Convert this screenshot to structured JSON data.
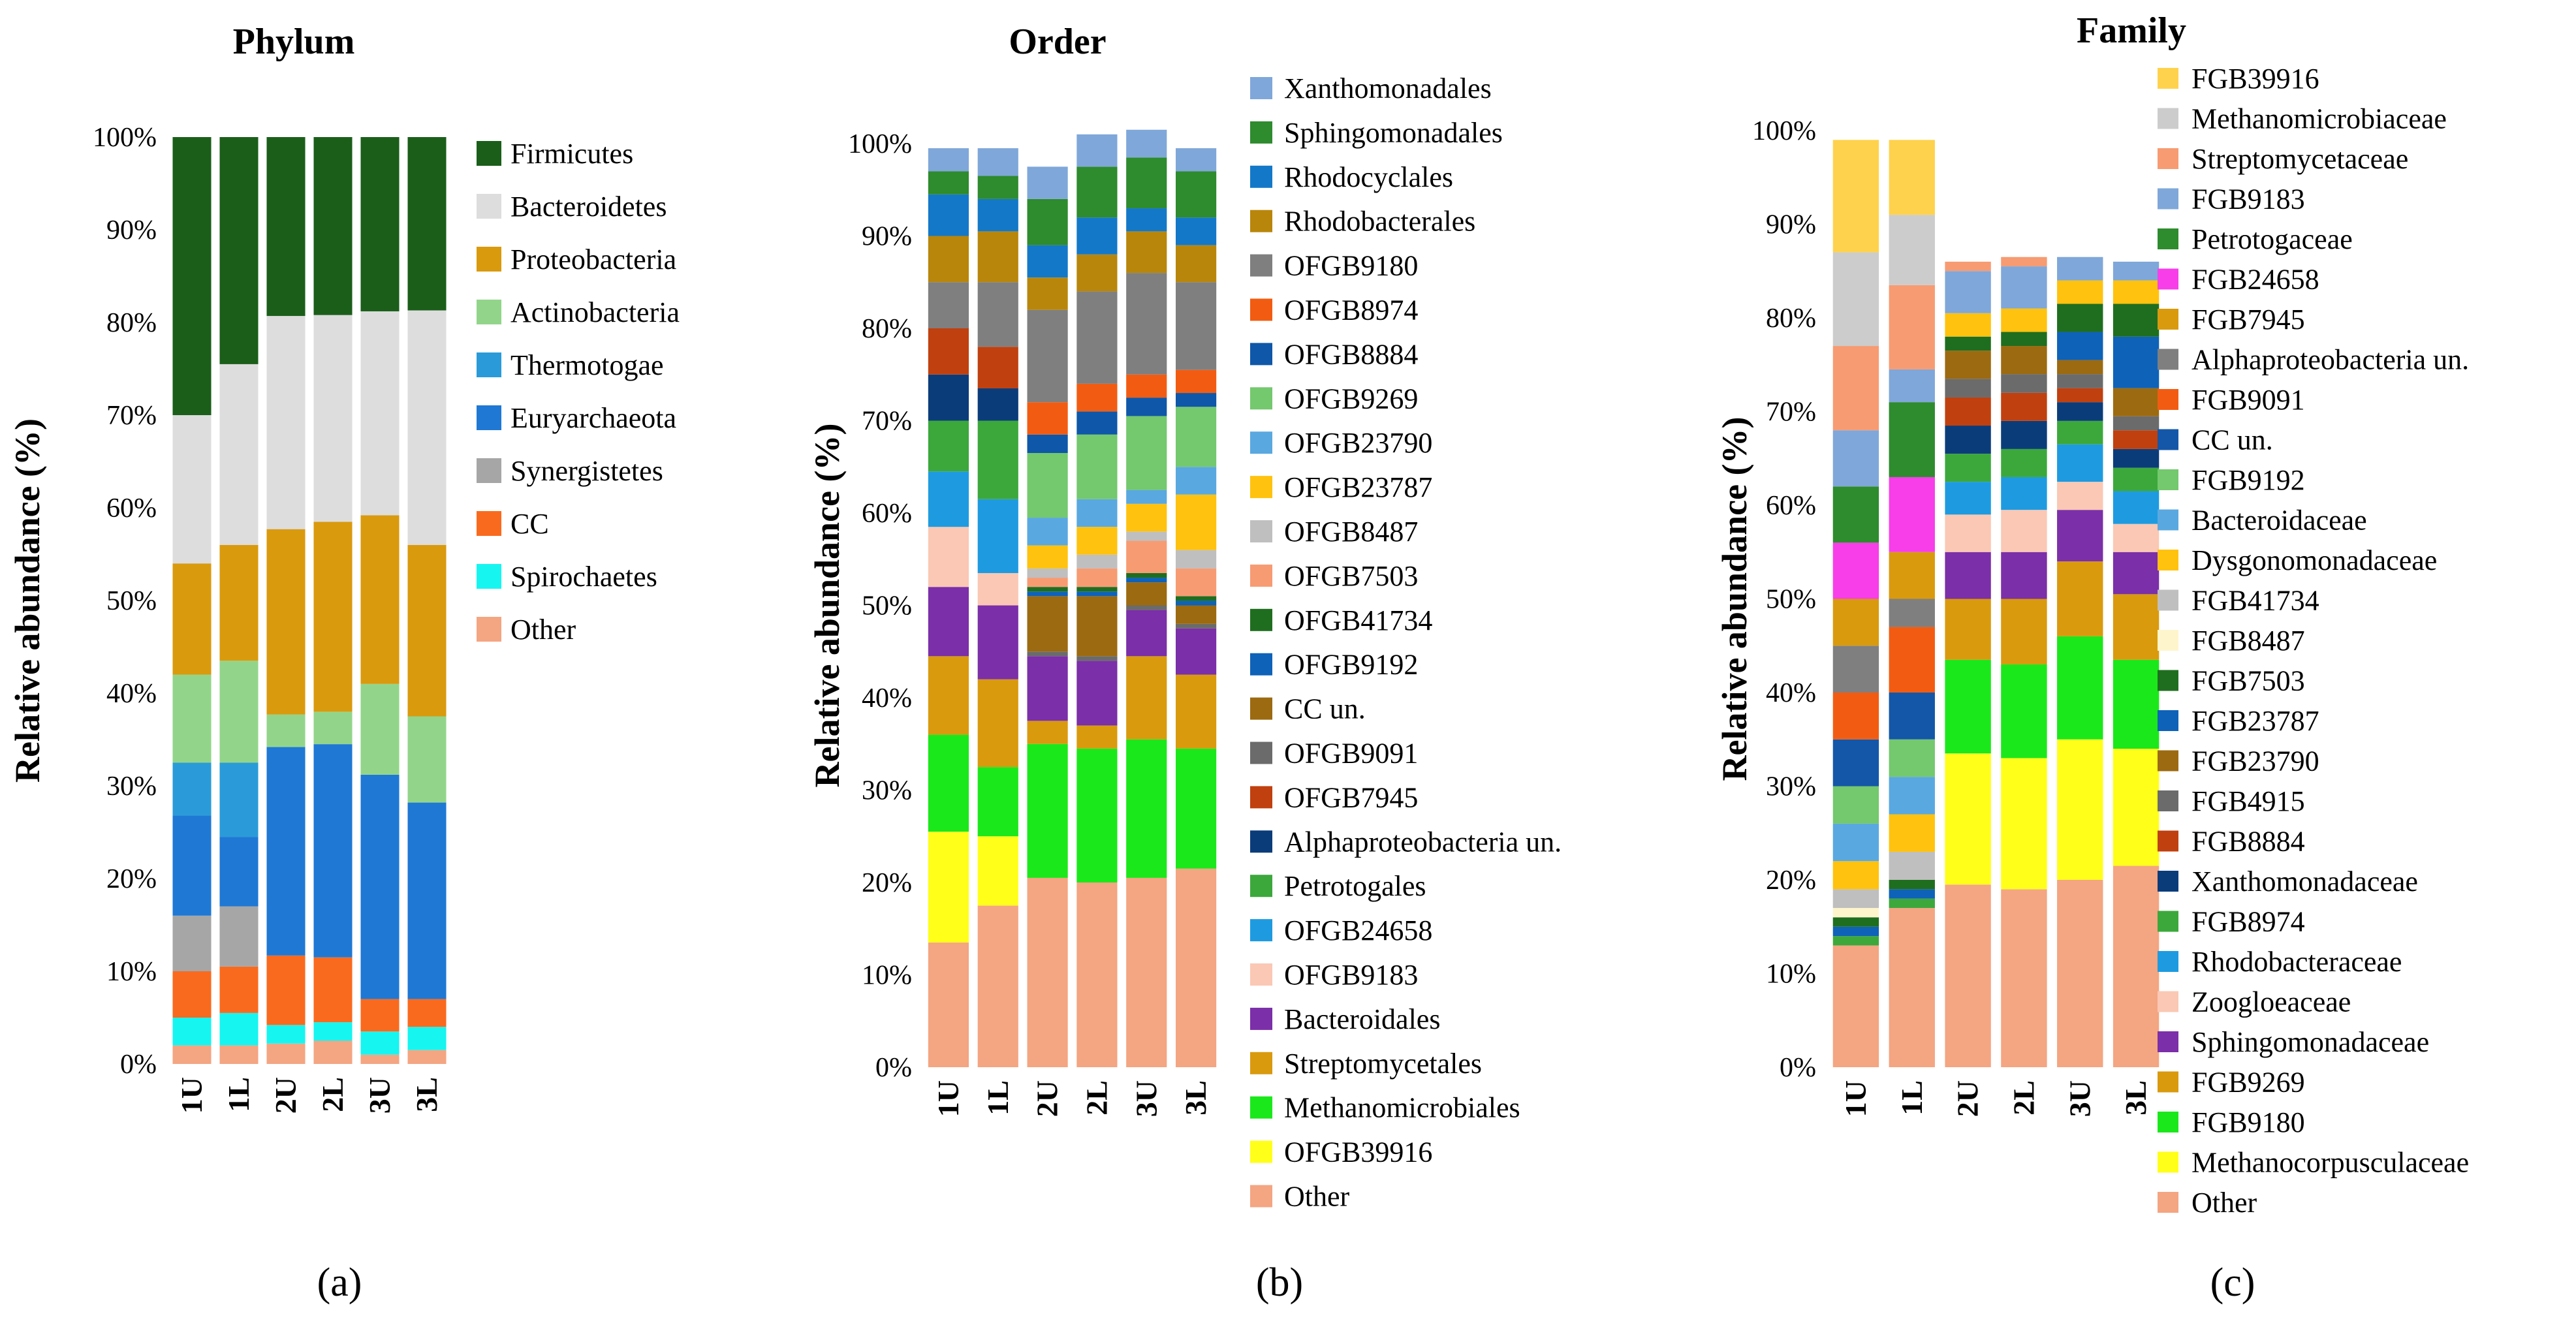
{
  "chart_data": [
    {
      "type": "bar",
      "stacked": true,
      "title": "Phylum",
      "caption": "(a)",
      "ylabel": "Relative abundance (%)",
      "ylim": [
        0,
        100
      ],
      "yticks": [
        "0%",
        "10%",
        "20%",
        "30%",
        "40%",
        "50%",
        "60%",
        "70%",
        "80%",
        "90%",
        "100%"
      ],
      "categories": [
        "1U",
        "1L",
        "2U",
        "2L",
        "3U",
        "3L"
      ],
      "series": [
        {
          "name": "Other",
          "color": "#F4A582",
          "values": [
            2,
            2,
            2.2,
            2.5,
            1,
            1.5
          ]
        },
        {
          "name": "Spirochaetes",
          "color": "#17F5F0",
          "values": [
            3,
            3.5,
            2,
            2,
            2.5,
            2.5
          ]
        },
        {
          "name": "CC",
          "color": "#FA6A1E",
          "values": [
            5,
            5,
            7.5,
            7,
            3.5,
            3
          ]
        },
        {
          "name": "Synergistetes",
          "color": "#A6A6A6",
          "values": [
            6,
            6.5,
            0,
            0,
            0,
            0
          ]
        },
        {
          "name": "Euryarchaeota",
          "color": "#1F78D4",
          "values": [
            10.8,
            7.5,
            22.5,
            23,
            24.2,
            21.2
          ]
        },
        {
          "name": "Thermotogae",
          "color": "#2A9BD8",
          "values": [
            5.7,
            8,
            0,
            0,
            0,
            0
          ]
        },
        {
          "name": "Actinobacteria",
          "color": "#92D58A",
          "values": [
            9.5,
            11,
            3.5,
            3.5,
            9.8,
            9.3
          ]
        },
        {
          "name": "Proteobacteria",
          "color": "#D99A0E",
          "values": [
            12,
            12.5,
            20,
            20.5,
            18.2,
            18.5
          ]
        },
        {
          "name": "Bacteroidetes",
          "color": "#DDDDDD",
          "values": [
            16,
            19.5,
            23,
            22.3,
            22,
            25.3
          ]
        },
        {
          "name": "Firmicutes",
          "color": "#1A5E1A",
          "values": [
            30,
            24.5,
            19.3,
            19.2,
            18.8,
            18.7
          ]
        }
      ]
    },
    {
      "type": "bar",
      "stacked": true,
      "title": "Order",
      "caption": "(b)",
      "ylabel": "Relative abundance (%)",
      "ylim": [
        0,
        100
      ],
      "yticks": [
        "0%",
        "10%",
        "20%",
        "30%",
        "40%",
        "50%",
        "60%",
        "70%",
        "80%",
        "90%",
        "100%"
      ],
      "categories": [
        "1U",
        "1L",
        "2U",
        "2L",
        "3U",
        "3L"
      ],
      "series": [
        {
          "name": "Other",
          "color": "#F4A582",
          "values": [
            13.5,
            17.5,
            20.5,
            20,
            20.5,
            21.5
          ]
        },
        {
          "name": "OFGB39916",
          "color": "#FFFF1A",
          "values": [
            12,
            7.5,
            0,
            0,
            0,
            0
          ]
        },
        {
          "name": "Methanomicrobiales",
          "color": "#1BE81B",
          "values": [
            10.5,
            7.5,
            14.5,
            14.5,
            15,
            13
          ]
        },
        {
          "name": "Streptomycetales",
          "color": "#D99A0E",
          "values": [
            8.5,
            9.5,
            2.5,
            2.5,
            9,
            8
          ]
        },
        {
          "name": "Bacteroidales",
          "color": "#7B2FA8",
          "values": [
            7.5,
            8,
            7,
            7,
            5,
            5
          ]
        },
        {
          "name": "OFGB9183",
          "color": "#FAC8B4",
          "values": [
            6.5,
            3.5,
            0,
            0,
            0,
            0
          ]
        },
        {
          "name": "OFGB24658",
          "color": "#1E9BE0",
          "values": [
            6,
            8,
            0,
            0,
            0,
            0
          ]
        },
        {
          "name": "Petrotogales",
          "color": "#3CA83C",
          "values": [
            5.5,
            8.5,
            0,
            0,
            0,
            0
          ]
        },
        {
          "name": "Alphaproteobacteria un.",
          "color": "#0B3C7A",
          "values": [
            5,
            3.5,
            0,
            0,
            0,
            0
          ]
        },
        {
          "name": "OFGB7945",
          "color": "#C0400F",
          "values": [
            5,
            4.5,
            0,
            0,
            0,
            0
          ]
        },
        {
          "name": "OFGB9091",
          "color": "#6B6B6B",
          "values": [
            0,
            0,
            0.5,
            0.5,
            0.5,
            0.5
          ]
        },
        {
          "name": "CC un.",
          "color": "#9C6A10",
          "values": [
            0,
            0,
            6,
            6.5,
            2.5,
            2
          ]
        },
        {
          "name": "OFGB9192",
          "color": "#0E62B8",
          "values": [
            0,
            0,
            0.5,
            0.5,
            0.5,
            0.5
          ]
        },
        {
          "name": "OFGB41734",
          "color": "#1F6E1F",
          "values": [
            0,
            0,
            0.5,
            0.5,
            0.5,
            0.5
          ]
        },
        {
          "name": "OFGB7503",
          "color": "#F79B73",
          "values": [
            0,
            0,
            1,
            2,
            3.5,
            3
          ]
        },
        {
          "name": "OFGB8487",
          "color": "#BFBFBF",
          "values": [
            0,
            0,
            1,
            1.5,
            1,
            2
          ]
        },
        {
          "name": "OFGB23787",
          "color": "#FFC20E",
          "values": [
            0,
            0,
            2.5,
            3,
            3,
            6
          ]
        },
        {
          "name": "OFGB23790",
          "color": "#5AA8E0",
          "values": [
            0,
            0,
            3,
            3,
            1.5,
            3
          ]
        },
        {
          "name": "OFGB9269",
          "color": "#74C86E",
          "values": [
            0,
            0,
            7,
            7,
            8,
            6.5
          ]
        },
        {
          "name": "OFGB8884",
          "color": "#0F57A8",
          "values": [
            0,
            0,
            2,
            2.5,
            2,
            1.5
          ]
        },
        {
          "name": "OFGB8974",
          "color": "#F25C12",
          "values": [
            0,
            0,
            3.5,
            3,
            2.5,
            2.5
          ]
        },
        {
          "name": "OFGB9180",
          "color": "#7F7F7F",
          "values": [
            5,
            7,
            10,
            10,
            11,
            9.5
          ]
        },
        {
          "name": "Rhodobacterales",
          "color": "#B8860B",
          "values": [
            5,
            5.5,
            3.5,
            4,
            4.5,
            4
          ]
        },
        {
          "name": "Rhodocyclales",
          "color": "#1478C8",
          "values": [
            4.5,
            3.5,
            3.5,
            4,
            2.5,
            3
          ]
        },
        {
          "name": "Sphingomonadales",
          "color": "#2E8B2E",
          "values": [
            2.5,
            2.5,
            5,
            5.5,
            5.5,
            5
          ]
        },
        {
          "name": "Xanthomonadales",
          "color": "#7FA7D9",
          "values": [
            2.5,
            3,
            3.5,
            3.5,
            3,
            2.5
          ]
        }
      ]
    },
    {
      "type": "bar",
      "stacked": true,
      "title": "Family",
      "caption": "(c)",
      "ylabel": "Relative abundance (%)",
      "ylim": [
        0,
        100
      ],
      "yticks": [
        "0%",
        "10%",
        "20%",
        "30%",
        "40%",
        "50%",
        "60%",
        "70%",
        "80%",
        "90%",
        "100%"
      ],
      "categories": [
        "1U",
        "1L",
        "2U",
        "2L",
        "3U",
        "3L"
      ],
      "series": [
        {
          "name": "Other",
          "color": "#F4A582",
          "values": [
            13,
            17,
            19.5,
            19,
            20,
            21.5
          ]
        },
        {
          "name": "Methanocorpusculaceae",
          "color": "#FFFF1A",
          "values": [
            0,
            0,
            14,
            14,
            15,
            12.5
          ]
        },
        {
          "name": "FGB9180",
          "color": "#1BE81B",
          "values": [
            0,
            0,
            10,
            10,
            11,
            9.5
          ]
        },
        {
          "name": "FGB9269",
          "color": "#D99A0E",
          "values": [
            0,
            0,
            6.5,
            7,
            8,
            7
          ]
        },
        {
          "name": "Sphingomonadaceae",
          "color": "#7B2FA8",
          "values": [
            0,
            0,
            5,
            5,
            5.5,
            4.5
          ]
        },
        {
          "name": "Zoogloeaceae",
          "color": "#FAC8B4",
          "values": [
            0,
            0,
            4,
            4.5,
            3,
            3
          ]
        },
        {
          "name": "Rhodobacteraceae",
          "color": "#1E9BE0",
          "values": [
            0,
            0,
            3.5,
            3.5,
            4,
            3.5
          ]
        },
        {
          "name": "FGB8974",
          "color": "#3CA83C",
          "values": [
            1,
            1,
            3,
            3,
            2.5,
            2.5
          ]
        },
        {
          "name": "Xanthomonadaceae",
          "color": "#0B3C7A",
          "values": [
            0,
            0,
            3,
            3,
            2,
            2
          ]
        },
        {
          "name": "FGB8884",
          "color": "#C0400F",
          "values": [
            0,
            0,
            3,
            3,
            1.5,
            2
          ]
        },
        {
          "name": "FGB4915",
          "color": "#6B6B6B",
          "values": [
            0,
            0,
            2,
            2,
            1.5,
            1.5
          ]
        },
        {
          "name": "FGB23790",
          "color": "#9C6A10",
          "values": [
            0,
            0,
            3,
            3,
            1.5,
            3
          ]
        },
        {
          "name": "FGB23787",
          "color": "#0E62B8",
          "values": [
            1,
            1,
            0,
            0,
            3,
            5.5
          ]
        },
        {
          "name": "FGB7503",
          "color": "#1F6E1F",
          "values": [
            1,
            1,
            1.5,
            1.5,
            3,
            3.5
          ]
        },
        {
          "name": "FGB8487",
          "color": "#FFF5CC",
          "values": [
            1,
            0,
            0,
            0,
            0,
            0
          ]
        },
        {
          "name": "FGB41734",
          "color": "#BFBFBF",
          "values": [
            2,
            3,
            0,
            0,
            0,
            0
          ]
        },
        {
          "name": "Dysgonomonadaceae",
          "color": "#FFC20E",
          "values": [
            3,
            4,
            2.5,
            2.5,
            2.5,
            2.5
          ]
        },
        {
          "name": "Bacteroidaceae",
          "color": "#5AA8E0",
          "values": [
            4,
            4,
            0,
            0,
            0,
            0
          ]
        },
        {
          "name": "FGB9192",
          "color": "#74C86E",
          "values": [
            4,
            4,
            0,
            0,
            0,
            0
          ]
        },
        {
          "name": "CC un.",
          "color": "#1457A8",
          "values": [
            5,
            5,
            0,
            0,
            0,
            0
          ]
        },
        {
          "name": "FGB9091",
          "color": "#F25C12",
          "values": [
            5,
            7,
            0,
            0,
            0,
            0
          ]
        },
        {
          "name": "Alphaproteobacteria un.",
          "color": "#7F7F7F",
          "values": [
            5,
            3,
            0,
            0,
            0,
            0
          ]
        },
        {
          "name": "FGB7945",
          "color": "#D99A0E",
          "values": [
            5,
            5,
            0,
            0,
            0,
            0
          ]
        },
        {
          "name": "FGB24658",
          "color": "#F73EE8",
          "values": [
            6,
            8,
            0,
            0,
            0,
            0
          ]
        },
        {
          "name": "Petrotogaceae",
          "color": "#2E8B2E",
          "values": [
            6,
            8,
            0,
            0,
            0,
            0
          ]
        },
        {
          "name": "FGB9183",
          "color": "#7FA7D9",
          "values": [
            6,
            3.5,
            4.5,
            4.5,
            2.5,
            2
          ]
        },
        {
          "name": "Streptomycetaceae",
          "color": "#F79B73",
          "values": [
            9,
            9,
            1,
            1,
            0,
            0
          ]
        },
        {
          "name": "Methanomicrobiaceae",
          "color": "#CCCCCC",
          "values": [
            10,
            7.5,
            0,
            0,
            0,
            0
          ]
        },
        {
          "name": "FGB39916",
          "color": "#FFD24D",
          "values": [
            12,
            8,
            0,
            0,
            0,
            0
          ]
        }
      ]
    }
  ]
}
